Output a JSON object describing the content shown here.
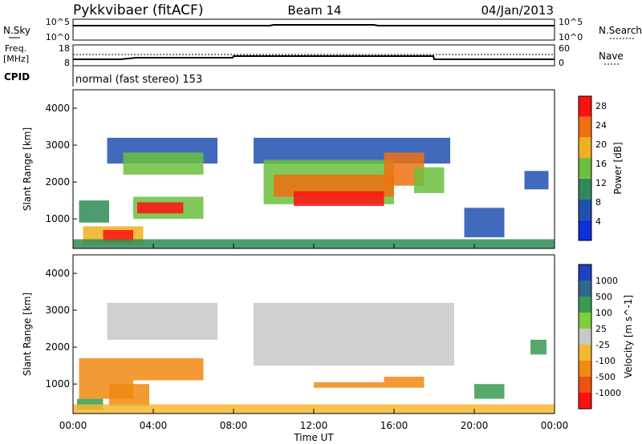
{
  "header": {
    "station": "Pykkvibaer (fitACF)",
    "beam": "Beam 14",
    "date": "04/Jan/2013"
  },
  "nsky_panel": {
    "left_label": "N.Sky",
    "right_label": "N.Search",
    "left_ticks": [
      "10^5",
      "10^0"
    ],
    "right_ticks": [
      "10^5",
      "10^0"
    ]
  },
  "freq_panel": {
    "left_label_1": "Freq.",
    "left_label_2": "[MHz]",
    "right_label": "Nave",
    "left_ticks": [
      "18",
      "8"
    ],
    "right_ticks": [
      "60",
      "0"
    ]
  },
  "cpid": {
    "label": "CPID",
    "text": "normal (fast stereo) 153"
  },
  "x_axis": {
    "label": "Time UT",
    "ticks": [
      "00:00",
      "04:00",
      "08:00",
      "12:00",
      "16:00",
      "20:00",
      "00:00"
    ]
  },
  "chart_data": [
    {
      "type": "heatmap",
      "name": "Power",
      "xlabel": "Time UT",
      "ylabel": "Slant Range [km]",
      "x_ticks": [
        "00:00",
        "04:00",
        "08:00",
        "12:00",
        "16:00",
        "20:00",
        "00:00"
      ],
      "xlim_hours": [
        0,
        24
      ],
      "ylim": [
        200,
        4500
      ],
      "y_ticks": [
        1000,
        2000,
        3000,
        4000
      ],
      "colorbar": {
        "label": "Power [dB]",
        "ticks": [
          4,
          8,
          12,
          16,
          20,
          24,
          28
        ],
        "range": [
          0,
          30
        ],
        "colors": [
          "#1030d8",
          "#2050b0",
          "#2e8b57",
          "#6cbf40",
          "#f0b020",
          "#f07010",
          "#ff1010"
        ]
      },
      "regions": [
        {
          "t0": 1.7,
          "t1": 7.2,
          "r0": 2500,
          "r1": 3200,
          "value": 8
        },
        {
          "t0": 2.5,
          "t1": 6.5,
          "r0": 2200,
          "r1": 2800,
          "value": 14
        },
        {
          "t0": 0.3,
          "t1": 1.8,
          "r0": 900,
          "r1": 1500,
          "value": 12
        },
        {
          "t0": 3.0,
          "t1": 6.5,
          "r0": 1000,
          "r1": 1600,
          "value": 16
        },
        {
          "t0": 3.2,
          "t1": 5.5,
          "r0": 1150,
          "r1": 1450,
          "value": 26
        },
        {
          "t0": 0.5,
          "t1": 3.5,
          "r0": 300,
          "r1": 800,
          "value": 20
        },
        {
          "t0": 1.5,
          "t1": 3.0,
          "r0": 400,
          "r1": 700,
          "value": 26
        },
        {
          "t0": 9.0,
          "t1": 18.8,
          "r0": 2500,
          "r1": 3200,
          "value": 6
        },
        {
          "t0": 9.5,
          "t1": 16.0,
          "r0": 1400,
          "r1": 2600,
          "value": 16
        },
        {
          "t0": 10.0,
          "t1": 16.0,
          "r0": 1600,
          "r1": 2200,
          "value": 22
        },
        {
          "t0": 11.0,
          "t1": 15.5,
          "r0": 1350,
          "r1": 1750,
          "value": 28
        },
        {
          "t0": 15.5,
          "t1": 17.5,
          "r0": 1900,
          "r1": 2800,
          "value": 24
        },
        {
          "t0": 17.0,
          "t1": 18.5,
          "r0": 1700,
          "r1": 2400,
          "value": 14
        },
        {
          "t0": 19.5,
          "t1": 21.5,
          "r0": 500,
          "r1": 1300,
          "value": 6
        },
        {
          "t0": 22.5,
          "t1": 23.7,
          "r0": 1800,
          "r1": 2300,
          "value": 8
        },
        {
          "t0": 0.0,
          "t1": 24.0,
          "r0": 200,
          "r1": 450,
          "value": 10
        }
      ]
    },
    {
      "type": "heatmap",
      "name": "Velocity",
      "xlabel": "Time UT",
      "ylabel": "Slant Range [km]",
      "x_ticks": [
        "00:00",
        "04:00",
        "08:00",
        "12:00",
        "16:00",
        "20:00",
        "00:00"
      ],
      "xlim_hours": [
        0,
        24
      ],
      "ylim": [
        200,
        4500
      ],
      "y_ticks": [
        1000,
        2000,
        3000,
        4000
      ],
      "colorbar": {
        "label": "Velocity [m s^-1]",
        "ticks": [
          1000,
          500,
          100,
          25,
          -25,
          -100,
          -500,
          -1000
        ],
        "levels": [
          {
            "value": 1000,
            "color": "#2040c0"
          },
          {
            "value": 500,
            "color": "#30688c"
          },
          {
            "value": 100,
            "color": "#3a9a50"
          },
          {
            "value": 25,
            "color": "#7ecf3c"
          },
          {
            "value": 0,
            "color": "#c8c8c8"
          },
          {
            "value": -25,
            "color": "#f5b830"
          },
          {
            "value": -100,
            "color": "#f08a10"
          },
          {
            "value": -500,
            "color": "#f05010"
          },
          {
            "value": -1000,
            "color": "#ff1010"
          }
        ]
      },
      "regions": [
        {
          "t0": 1.7,
          "t1": 7.2,
          "r0": 2200,
          "r1": 3200,
          "value": 0
        },
        {
          "t0": 9.0,
          "t1": 19.0,
          "r0": 1500,
          "r1": 3200,
          "value": 0
        },
        {
          "t0": 0.3,
          "t1": 3.0,
          "r0": 600,
          "r1": 1700,
          "value": -100
        },
        {
          "t0": 3.0,
          "t1": 6.5,
          "r0": 1100,
          "r1": 1700,
          "value": -100
        },
        {
          "t0": 1.8,
          "t1": 3.8,
          "r0": 400,
          "r1": 1000,
          "value": -100
        },
        {
          "t0": 0.2,
          "t1": 1.5,
          "r0": 300,
          "r1": 600,
          "value": 100
        },
        {
          "t0": 15.5,
          "t1": 17.5,
          "r0": 900,
          "r1": 1200,
          "value": -100
        },
        {
          "t0": 12.0,
          "t1": 15.5,
          "r0": 900,
          "r1": 1050,
          "value": -100
        },
        {
          "t0": 20.0,
          "t1": 21.5,
          "r0": 600,
          "r1": 1000,
          "value": 100
        },
        {
          "t0": 22.8,
          "t1": 23.6,
          "r0": 1800,
          "r1": 2200,
          "value": 100
        },
        {
          "t0": 0.0,
          "t1": 24.0,
          "r0": 200,
          "r1": 450,
          "value": -25
        }
      ]
    }
  ]
}
